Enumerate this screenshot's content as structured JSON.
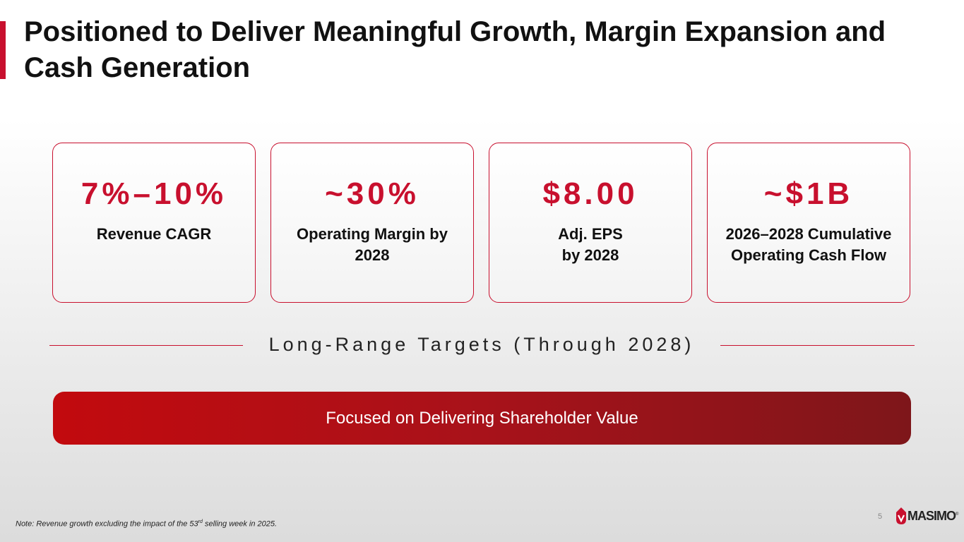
{
  "slide": {
    "title": "Positioned to Deliver Meaningful Growth, Margin Expansion and Cash Generation",
    "accent_color": "#c8102e"
  },
  "cards": [
    {
      "metric": "7%–10%",
      "label": "Revenue CAGR"
    },
    {
      "metric": "~30%",
      "label": "Operating Margin by 2028"
    },
    {
      "metric": "$8.00",
      "label": "Adj. EPS\nby 2028"
    },
    {
      "metric": "~$1B",
      "label": "2026–2028 Cumulative Operating Cash Flow"
    }
  ],
  "divider": {
    "text": "Long-Range Targets (Through 2028)"
  },
  "banner": {
    "text": "Focused on Delivering Shareholder Value"
  },
  "footer": {
    "note_prefix": "Note: Revenue growth excluding the impact of the 53",
    "note_superscript": "rd",
    "note_suffix": " selling week in 2025.",
    "page_number": "5",
    "logo_text": "MASIMO",
    "logo_registered": "®"
  }
}
